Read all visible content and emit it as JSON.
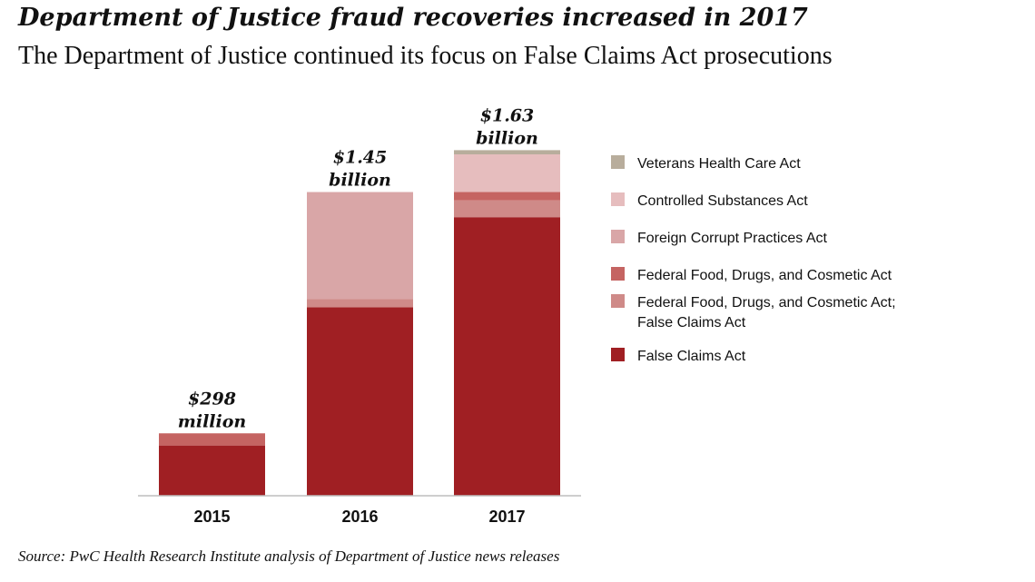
{
  "header": {
    "title": "Department of Justice fraud recoveries increased in 2017",
    "subtitle": "The Department of Justice continued its focus on False Claims Act prosecutions"
  },
  "footer": {
    "source": "Source: PwC Health Research Institute analysis of Department of Justice news releases"
  },
  "chart_data": {
    "type": "bar",
    "stacked": true,
    "unit": "billion USD",
    "categories": [
      "2015",
      "2016",
      "2017"
    ],
    "totals": [
      {
        "line1": "$298",
        "line2": "million"
      },
      {
        "line1": "$1.45",
        "line2": "billion"
      },
      {
        "line1": "$1.63",
        "line2": "billion"
      }
    ],
    "ylim": [
      0,
      1.63
    ],
    "grid": false,
    "legend_position": "right",
    "series": [
      {
        "name": "False Claims Act",
        "color": "#a01f23",
        "values": [
          0.24,
          0.9,
          1.33
        ]
      },
      {
        "name": "Federal Food, Drugs, and Cosmetic Act; False Claims Act",
        "color": "#cf8a88",
        "values": [
          0.0,
          0.04,
          0.08
        ]
      },
      {
        "name": "Federal Food, Drugs, and Cosmetic Act",
        "color": "#c56462",
        "values": [
          0.058,
          0.0,
          0.04
        ]
      },
      {
        "name": "Foreign Corrupt Practices Act",
        "color": "#d9a6a7",
        "values": [
          0.0,
          0.51,
          0.0
        ]
      },
      {
        "name": "Controlled Substances Act",
        "color": "#e6bdbe",
        "values": [
          0.0,
          0.0,
          0.18
        ]
      },
      {
        "name": "Veterans Health Care Act",
        "color": "#b8ad9c",
        "values": [
          0.0,
          0.0,
          0.02
        ]
      }
    ],
    "legend_order": [
      5,
      4,
      3,
      2,
      1,
      0
    ]
  }
}
